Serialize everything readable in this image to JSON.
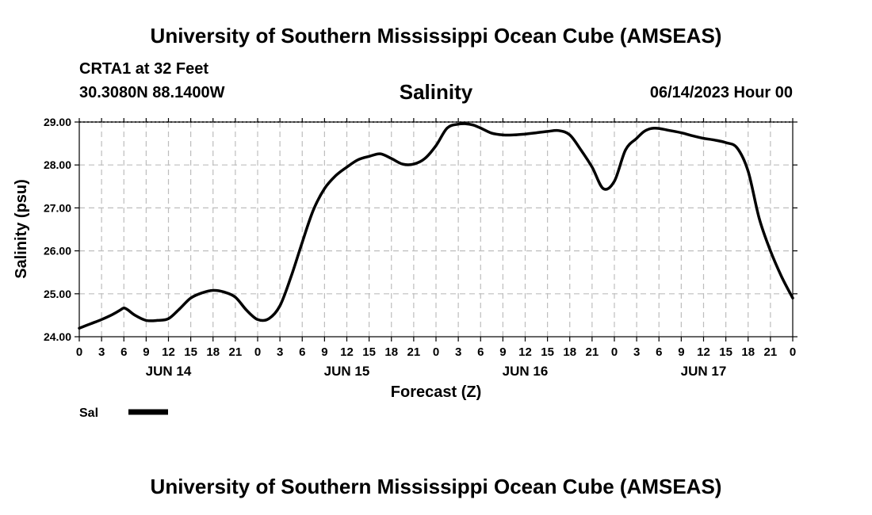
{
  "header": {
    "title": "University of Southern Mississippi Ocean Cube (AMSEAS)",
    "station": "CRTA1 at 32 Feet",
    "coordinates": "30.3080N  88.1400W",
    "run_time": "06/14/2023 Hour 00"
  },
  "footer": {
    "title": "University of Southern Mississippi Ocean Cube (AMSEAS)"
  },
  "chart_data": {
    "type": "line",
    "title": "Salinity",
    "xlabel": "Forecast (Z)",
    "ylabel": "Salinity (psu)",
    "ylim": [
      24.0,
      29.0
    ],
    "xlim": [
      0,
      96
    ],
    "y_ticks": [
      "24.00",
      "25.00",
      "26.00",
      "27.00",
      "28.00",
      "29.00"
    ],
    "x_tick_labels": [
      "0",
      "3",
      "6",
      "9",
      "12",
      "15",
      "18",
      "21",
      "0",
      "3",
      "6",
      "9",
      "12",
      "15",
      "18",
      "21",
      "0",
      "3",
      "6",
      "9",
      "12",
      "15",
      "18",
      "21",
      "0",
      "3",
      "6",
      "9",
      "12",
      "15",
      "18",
      "21",
      "0"
    ],
    "day_labels": [
      {
        "label": "JUN 14",
        "hour": 12
      },
      {
        "label": "JUN 15",
        "hour": 36
      },
      {
        "label": "JUN 16",
        "hour": 60
      },
      {
        "label": "JUN 17",
        "hour": 84
      }
    ],
    "grid": true,
    "legend_position": "bottom-left",
    "series": [
      {
        "name": "Sal",
        "x": [
          0,
          1.5,
          3,
          4.5,
          5.5,
          6,
          6.5,
          7.5,
          9,
          10.5,
          12,
          13.5,
          15,
          16.5,
          18,
          19.5,
          21,
          22.5,
          24,
          25.5,
          27,
          28.5,
          30,
          31.5,
          33,
          34.5,
          36,
          37.5,
          39,
          40.5,
          42,
          43.5,
          45,
          46.5,
          48,
          49.5,
          51,
          52,
          53,
          54,
          55.5,
          57,
          58.5,
          60,
          61.5,
          63,
          64.5,
          66,
          67.5,
          69,
          70.5,
          72,
          73.5,
          75,
          76,
          77,
          78,
          79.5,
          81,
          82.5,
          84,
          85.5,
          87,
          88.5,
          90,
          91.5,
          93,
          94.5,
          96
        ],
        "values": [
          24.2,
          24.3,
          24.4,
          24.52,
          24.62,
          24.67,
          24.63,
          24.5,
          24.38,
          24.38,
          24.42,
          24.65,
          24.9,
          25.02,
          25.08,
          25.04,
          24.92,
          24.62,
          24.4,
          24.42,
          24.72,
          25.4,
          26.2,
          26.95,
          27.45,
          27.75,
          27.95,
          28.12,
          28.2,
          28.26,
          28.15,
          28.02,
          28.02,
          28.15,
          28.45,
          28.86,
          28.95,
          28.96,
          28.93,
          28.86,
          28.74,
          28.7,
          28.7,
          28.72,
          28.75,
          28.78,
          28.8,
          28.7,
          28.35,
          27.95,
          27.45,
          27.62,
          28.35,
          28.62,
          28.78,
          28.85,
          28.85,
          28.8,
          28.75,
          28.68,
          28.62,
          28.58,
          28.52,
          28.4,
          27.85,
          26.75,
          26.0,
          25.4,
          24.9
        ]
      }
    ]
  }
}
